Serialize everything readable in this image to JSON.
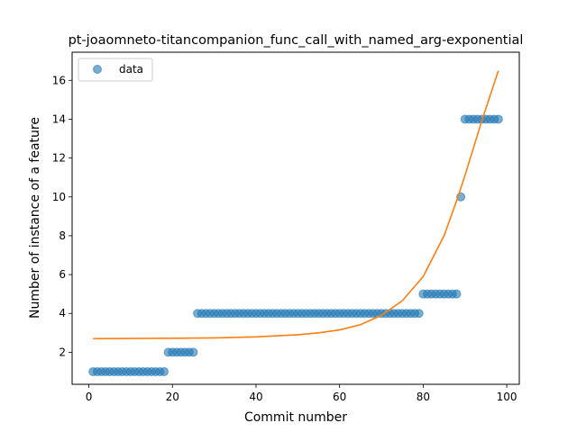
{
  "chart_data": {
    "type": "scatter",
    "title": "pt-joaomneto-titancompanion_func_call_with_named_arg-exponential",
    "xlabel": "Commit number",
    "ylabel": "Number of instance of a feature",
    "xlim": [
      -4,
      103
    ],
    "ylim": [
      0.35,
      17.45
    ],
    "xticks": [
      0,
      20,
      40,
      60,
      80,
      100
    ],
    "yticks": [
      2,
      4,
      6,
      8,
      10,
      12,
      14,
      16
    ],
    "grid": false,
    "legend": {
      "placement": "top-left",
      "entries": [
        "data"
      ]
    },
    "series": [
      {
        "name": "data",
        "kind": "scatter",
        "color": "#1f77b4",
        "x": [
          1,
          2,
          3,
          4,
          5,
          6,
          7,
          8,
          9,
          10,
          11,
          12,
          13,
          14,
          15,
          16,
          17,
          18,
          19,
          20,
          21,
          22,
          23,
          24,
          25,
          26,
          27,
          28,
          29,
          30,
          31,
          32,
          33,
          34,
          35,
          36,
          37,
          38,
          39,
          40,
          41,
          42,
          43,
          44,
          45,
          46,
          47,
          48,
          49,
          50,
          51,
          52,
          53,
          54,
          55,
          56,
          57,
          58,
          59,
          60,
          61,
          62,
          63,
          64,
          65,
          66,
          67,
          68,
          69,
          70,
          71,
          72,
          73,
          74,
          75,
          76,
          77,
          78,
          79,
          80,
          81,
          82,
          83,
          84,
          85,
          86,
          87,
          88,
          89,
          90,
          91,
          92,
          93,
          94,
          95,
          96,
          97,
          98
        ],
        "y": [
          1,
          1,
          1,
          1,
          1,
          1,
          1,
          1,
          1,
          1,
          1,
          1,
          1,
          1,
          1,
          1,
          1,
          1,
          2,
          2,
          2,
          2,
          2,
          2,
          2,
          4,
          4,
          4,
          4,
          4,
          4,
          4,
          4,
          4,
          4,
          4,
          4,
          4,
          4,
          4,
          4,
          4,
          4,
          4,
          4,
          4,
          4,
          4,
          4,
          4,
          4,
          4,
          4,
          4,
          4,
          4,
          4,
          4,
          4,
          4,
          4,
          4,
          4,
          4,
          4,
          4,
          4,
          4,
          4,
          4,
          4,
          4,
          4,
          4,
          4,
          4,
          4,
          4,
          4,
          5,
          5,
          5,
          5,
          5,
          5,
          5,
          5,
          5,
          10,
          14,
          14,
          14,
          14,
          14,
          14,
          14,
          14,
          14
        ]
      },
      {
        "kind": "line",
        "color": "#ff7f0e",
        "x": [
          1,
          10,
          20,
          30,
          40,
          50,
          55,
          60,
          65,
          70,
          75,
          80,
          85,
          88,
          90,
          92,
          94,
          96,
          98
        ],
        "y": [
          2.7,
          2.71,
          2.72,
          2.74,
          2.79,
          2.9,
          3.0,
          3.15,
          3.42,
          3.9,
          4.65,
          5.9,
          8.0,
          9.8,
          11.1,
          12.5,
          13.9,
          15.2,
          16.5
        ]
      }
    ]
  }
}
